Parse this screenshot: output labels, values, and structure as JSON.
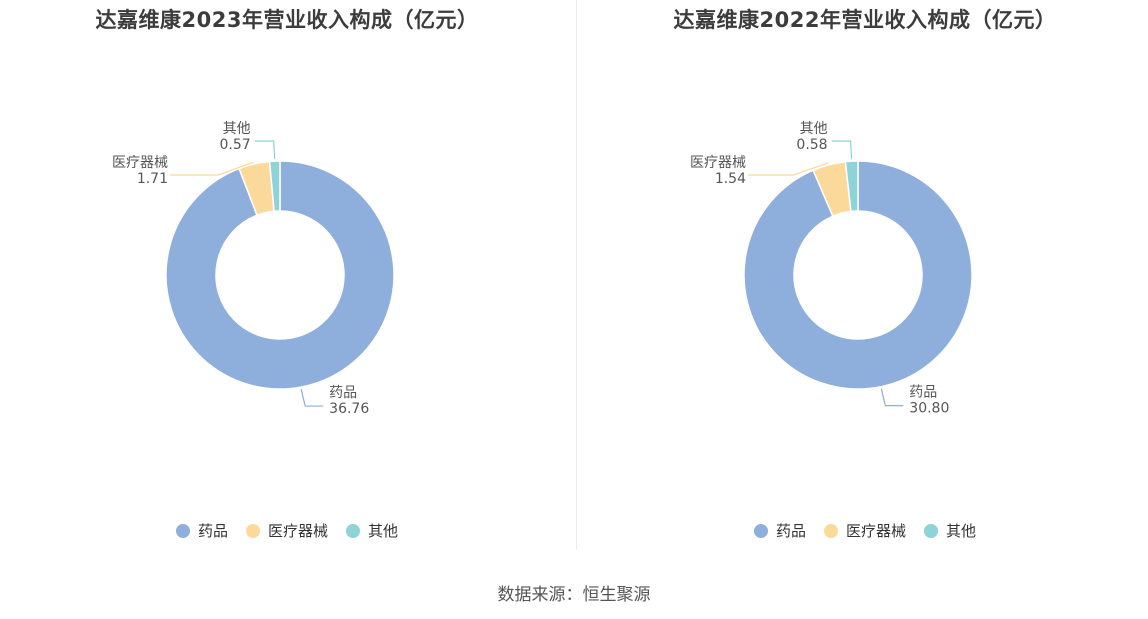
{
  "source": "数据来源：恒生聚源",
  "colors": {
    "药品": "#8eaedc",
    "医疗器械": "#fbd99b",
    "其他": "#8dd3d8"
  },
  "chart_data": [
    {
      "type": "pie",
      "variant": "donut",
      "title": "达嘉维康2023年营业收入构成（亿元）",
      "categories": [
        "药品",
        "医疗器械",
        "其他"
      ],
      "values": [
        36.76,
        1.71,
        0.57
      ],
      "value_labels": [
        "36.76",
        "1.71",
        "0.57"
      ],
      "legend": "bottom"
    },
    {
      "type": "pie",
      "variant": "donut",
      "title": "达嘉维康2022年营业收入构成（亿元）",
      "categories": [
        "药品",
        "医疗器械",
        "其他"
      ],
      "values": [
        30.8,
        1.54,
        0.58
      ],
      "value_labels": [
        "30.80",
        "1.54",
        "0.58"
      ],
      "legend": "bottom"
    }
  ]
}
